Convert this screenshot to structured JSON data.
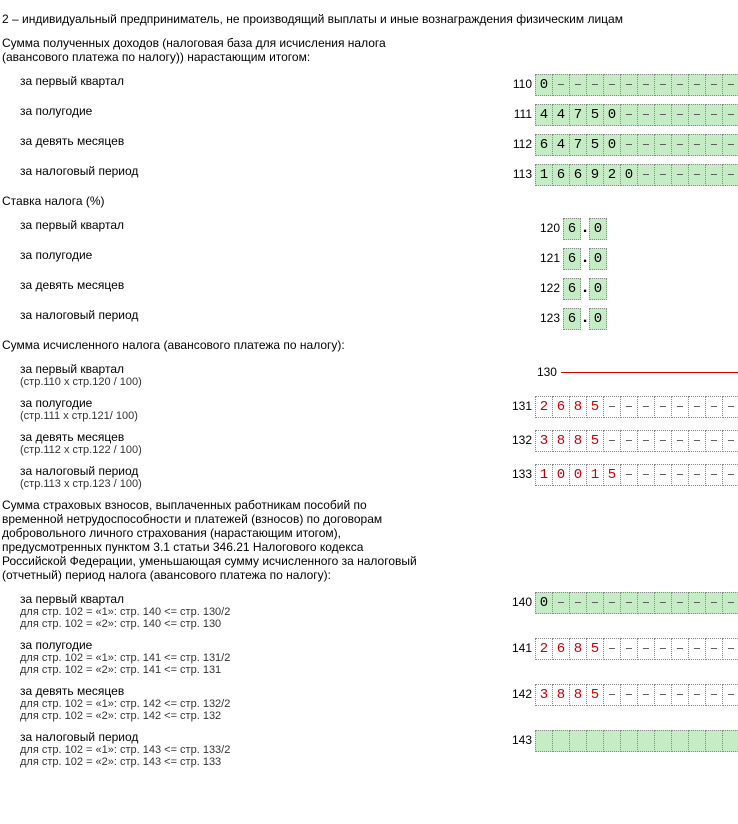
{
  "topnote": "2 – индивидуальный предприниматель, не производящий выплаты и иные вознаграждения физическим лицам",
  "cell_count": 12,
  "rate_int_cells": 1,
  "rate_frac_cells": 1,
  "sections": {
    "income": {
      "heading": "Сумма полученных доходов (налоговая база для исчисления налога (авансового платежа по налогу)) нарастающим итогом:",
      "rows": [
        {
          "label": "за первый квартал",
          "code": "110",
          "value": "0",
          "style": "green"
        },
        {
          "label": "за полугодие",
          "code": "111",
          "value": "44750",
          "style": "green"
        },
        {
          "label": "за девять месяцев",
          "code": "112",
          "value": "64750",
          "style": "green"
        },
        {
          "label": "за налоговый период",
          "code": "113",
          "value": "166920",
          "style": "green"
        }
      ]
    },
    "rate": {
      "heading": "Ставка налога (%)",
      "rows": [
        {
          "label": "за первый квартал",
          "code": "120",
          "int": "6",
          "frac": "0"
        },
        {
          "label": "за полугодие",
          "code": "121",
          "int": "6",
          "frac": "0"
        },
        {
          "label": "за девять месяцев",
          "code": "122",
          "int": "6",
          "frac": "0"
        },
        {
          "label": "за налоговый период",
          "code": "123",
          "int": "6",
          "frac": "0"
        }
      ]
    },
    "calc": {
      "heading": "Сумма исчисленного налога (авансового платежа по налогу):",
      "rows": [
        {
          "label": "за первый квартал",
          "sub": "(стр.110 х стр.120 / 100)",
          "code": "130",
          "value": "",
          "style": "redline"
        },
        {
          "label": "за полугодие",
          "sub": "(стр.111 х стр.121/ 100)",
          "code": "131",
          "value": "2685",
          "style": "red"
        },
        {
          "label": "за девять месяцев",
          "sub": "(стр.112 х стр.122 / 100)",
          "code": "132",
          "value": "3885",
          "style": "red"
        },
        {
          "label": "за налоговый период",
          "sub": "(стр.113 х стр.123 / 100)",
          "code": "133",
          "value": "10015",
          "style": "red"
        }
      ]
    },
    "insurance": {
      "heading": "Сумма страховых взносов, выплаченных работникам пособий по временной нетрудоспособности и платежей (взносов) по договорам добровольного личного страхования (нарастающим итогом), предусмотренных пунктом 3.1 статьи 346.21 Налогового кодекса Российской Федерации, уменьшающая сумму исчисленного за налоговый (отчетный) период налога (авансового платежа по налогу):",
      "rows": [
        {
          "label": "за первый квартал",
          "sub": "для стр. 102 = «1»: стр. 140 <= стр. 130/2\nдля стр. 102 = «2»: стр. 140 <= стр. 130",
          "code": "140",
          "value": "0",
          "style": "green"
        },
        {
          "label": "за полугодие",
          "sub": "для стр. 102 = «1»: стр. 141 <= стр. 131/2\nдля стр. 102 = «2»: стр. 141 <= стр. 131",
          "code": "141",
          "value": "2685",
          "style": "red"
        },
        {
          "label": "за девять месяцев",
          "sub": "для стр. 102 = «1»: стр. 142 <= стр. 132/2\nдля стр. 102 = «2»: стр. 142 <= стр. 132",
          "code": "142",
          "value": "3885",
          "style": "red"
        },
        {
          "label": "за налоговый период",
          "sub": "для стр. 102 = «1»: стр. 143 <= стр. 133/2\nдля стр. 102 = «2»: стр. 143 <= стр. 133",
          "code": "143",
          "value": "",
          "style": "greenblank"
        }
      ]
    }
  }
}
